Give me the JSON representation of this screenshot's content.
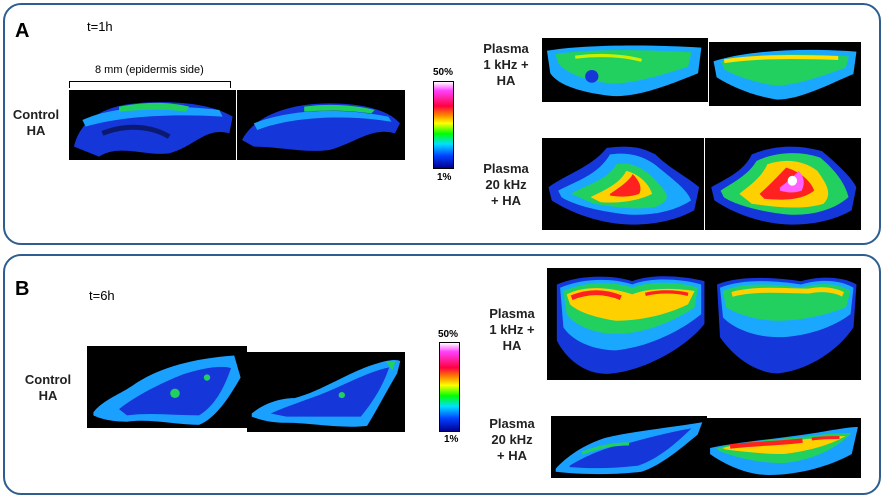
{
  "panels": [
    {
      "letter": "A",
      "time": "t=1h",
      "scale_note": "8 mm (epidermis side)",
      "colorbar": {
        "max": "50%",
        "min": "1%"
      },
      "rows": {
        "control": "Control\nHA",
        "plasma_1khz": "Plasma\n1 kHz +\nHA",
        "plasma_20khz": "Plasma\n20 kHz\n+ HA"
      }
    },
    {
      "letter": "B",
      "time": "t=6h",
      "colorbar": {
        "max": "50%",
        "min": "1%"
      },
      "rows": {
        "control": "Control\nHA",
        "plasma_1khz": "Plasma\n1 kHz +\nHA",
        "plasma_20khz": "Plasma\n20 kHz\n+ HA"
      }
    }
  ],
  "colors": {
    "panel_border": "#2e5d8f",
    "colormap": [
      "#ffffff",
      "#ff40ff",
      "#ff0040",
      "#ff8000",
      "#ffff00",
      "#00ff00",
      "#00e0ff",
      "#0040ff",
      "#000090"
    ]
  }
}
